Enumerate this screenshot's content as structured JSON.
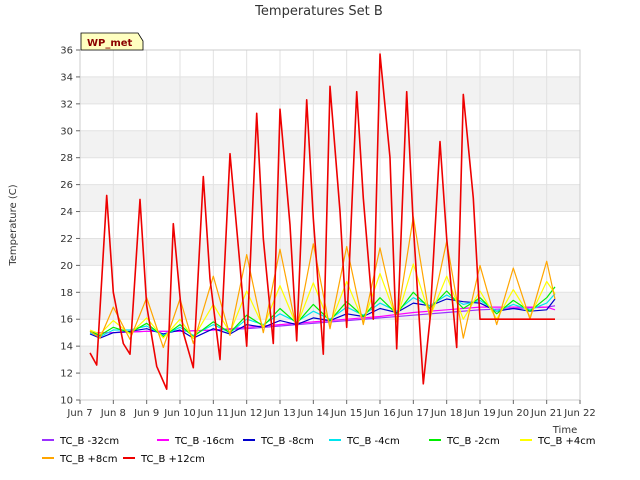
{
  "chart_data": {
    "type": "line",
    "title": "Temperatures Set B",
    "ylabel": "Temperature (C)",
    "xlabel": "Time",
    "badge": "WP_met",
    "xlim": [
      7,
      22
    ],
    "ylim": [
      10,
      36
    ],
    "x_ticks": [
      {
        "v": 7,
        "label": "Jun 7"
      },
      {
        "v": 8,
        "label": "Jun 8"
      },
      {
        "v": 9,
        "label": "Jun 9"
      },
      {
        "v": 10,
        "label": "Jun 10"
      },
      {
        "v": 11,
        "label": "Jun 11"
      },
      {
        "v": 12,
        "label": "Jun 12"
      },
      {
        "v": 13,
        "label": "Jun 13"
      },
      {
        "v": 14,
        "label": "Jun 14"
      },
      {
        "v": 15,
        "label": "Jun 15"
      },
      {
        "v": 16,
        "label": "Jun 16"
      },
      {
        "v": 17,
        "label": "Jun 17"
      },
      {
        "v": 18,
        "label": "Jun 18"
      },
      {
        "v": 19,
        "label": "Jun 19"
      },
      {
        "v": 20,
        "label": "Jun 20"
      },
      {
        "v": 21,
        "label": "Jun 21"
      },
      {
        "v": 22,
        "label": "Jun 22"
      }
    ],
    "y_ticks": [
      10,
      12,
      14,
      16,
      18,
      20,
      22,
      24,
      26,
      28,
      30,
      32,
      34,
      36
    ],
    "grid": true,
    "legend_position": "bottom",
    "series": [
      {
        "name": "TC_B -32cm",
        "color": "#9b30ff",
        "x": [
          7.3,
          8.0,
          9.0,
          10.0,
          11.0,
          12.0,
          13.0,
          14.0,
          15.0,
          16.0,
          17.0,
          18.0,
          19.0,
          20.0,
          21.0,
          21.25
        ],
        "y": [
          15.0,
          15.0,
          15.1,
          15.1,
          15.2,
          15.3,
          15.5,
          15.7,
          15.9,
          16.1,
          16.3,
          16.5,
          16.7,
          16.8,
          16.9,
          17.0
        ]
      },
      {
        "name": "TC_B -16cm",
        "color": "#ff00ff",
        "x": [
          7.3,
          8.0,
          9.0,
          10.0,
          11.0,
          12.0,
          13.0,
          14.0,
          15.0,
          16.0,
          17.0,
          18.0,
          19.0,
          20.0,
          21.0,
          21.25
        ],
        "y": [
          15.0,
          15.0,
          15.1,
          15.1,
          15.2,
          15.4,
          15.6,
          15.8,
          16.0,
          16.2,
          16.5,
          16.7,
          16.9,
          16.9,
          16.9,
          16.7
        ]
      },
      {
        "name": "TC_B -8cm",
        "color": "#0000cc",
        "x": [
          7.3,
          7.6,
          8.0,
          8.5,
          9.0,
          9.5,
          10.0,
          10.4,
          11.0,
          11.5,
          12.0,
          12.5,
          13.0,
          13.5,
          14.0,
          14.5,
          15.0,
          15.5,
          16.0,
          16.5,
          17.0,
          17.5,
          18.0,
          18.5,
          19.0,
          19.5,
          20.0,
          20.5,
          21.0,
          21.25
        ],
        "y": [
          14.9,
          14.6,
          15.0,
          15.1,
          15.3,
          14.9,
          15.2,
          14.6,
          15.3,
          14.9,
          15.6,
          15.4,
          15.9,
          15.6,
          16.1,
          15.9,
          16.4,
          16.2,
          16.8,
          16.5,
          17.2,
          17.0,
          17.5,
          17.3,
          17.2,
          16.6,
          16.8,
          16.6,
          16.7,
          17.5
        ]
      },
      {
        "name": "TC_B -4cm",
        "color": "#00e5ee",
        "x": [
          7.3,
          7.6,
          8.0,
          8.5,
          9.0,
          9.5,
          10.0,
          10.4,
          11.0,
          11.5,
          12.0,
          12.5,
          13.0,
          13.5,
          14.0,
          14.5,
          15.0,
          15.5,
          16.0,
          16.5,
          17.0,
          17.5,
          18.0,
          18.5,
          19.0,
          19.5,
          20.0,
          20.5,
          21.0,
          21.25
        ],
        "y": [
          15.0,
          14.7,
          15.2,
          15.2,
          15.5,
          14.8,
          15.4,
          14.8,
          15.6,
          15.0,
          16.0,
          15.6,
          16.4,
          15.8,
          16.6,
          16.0,
          16.9,
          16.3,
          17.2,
          16.6,
          17.6,
          17.0,
          17.8,
          17.1,
          17.4,
          16.6,
          17.1,
          16.7,
          17.2,
          17.9
        ]
      },
      {
        "name": "TC_B -2cm",
        "color": "#00ee00",
        "x": [
          7.3,
          7.6,
          8.0,
          8.5,
          9.0,
          9.5,
          10.0,
          10.4,
          11.0,
          11.5,
          12.0,
          12.5,
          13.0,
          13.5,
          14.0,
          14.5,
          15.0,
          15.5,
          16.0,
          16.5,
          17.0,
          17.5,
          18.0,
          18.5,
          19.0,
          19.5,
          20.0,
          20.5,
          21.0,
          21.25
        ],
        "y": [
          15.1,
          14.8,
          15.4,
          15.0,
          15.7,
          14.7,
          15.6,
          14.7,
          15.8,
          15.0,
          16.3,
          15.5,
          16.8,
          15.7,
          17.1,
          15.9,
          17.3,
          16.2,
          17.6,
          16.4,
          18.0,
          16.8,
          18.1,
          16.8,
          17.6,
          16.4,
          17.4,
          16.6,
          17.6,
          18.4
        ]
      },
      {
        "name": "TC_B +4cm",
        "color": "#ffff00",
        "x": [
          7.3,
          7.6,
          8.0,
          8.5,
          9.0,
          9.5,
          10.0,
          10.4,
          11.0,
          11.5,
          12.0,
          12.5,
          13.0,
          13.5,
          14.0,
          14.5,
          15.0,
          15.5,
          16.0,
          16.5,
          17.0,
          17.5,
          18.0,
          18.5,
          19.0,
          19.5,
          20.0,
          20.5,
          21.0,
          21.25
        ],
        "y": [
          15.2,
          14.9,
          15.9,
          14.9,
          16.1,
          14.6,
          16.0,
          14.6,
          17.1,
          15.0,
          18.1,
          15.4,
          18.5,
          15.5,
          18.7,
          15.6,
          18.8,
          15.8,
          19.4,
          16.0,
          20.1,
          16.2,
          19.2,
          16.0,
          18.1,
          16.0,
          18.2,
          16.2,
          18.8,
          17.9
        ]
      },
      {
        "name": "TC_B +8cm",
        "color": "#ffa500",
        "x": [
          7.3,
          7.6,
          8.0,
          8.5,
          9.0,
          9.5,
          10.0,
          10.4,
          11.0,
          11.5,
          12.0,
          12.5,
          13.0,
          13.5,
          14.0,
          14.5,
          15.0,
          15.5,
          16.0,
          16.5,
          17.0,
          17.5,
          18.0,
          18.5,
          19.0,
          19.5,
          20.0,
          20.5,
          21.0,
          21.25
        ],
        "y": [
          15.1,
          14.6,
          16.9,
          14.5,
          17.6,
          13.9,
          17.5,
          14.2,
          19.2,
          14.8,
          20.8,
          15.0,
          21.2,
          15.2,
          21.6,
          15.3,
          21.4,
          15.6,
          21.3,
          15.8,
          23.6,
          16.0,
          21.8,
          14.6,
          20.0,
          15.6,
          19.8,
          16.0,
          20.3,
          17.5
        ]
      },
      {
        "name": "TC_B +12cm",
        "color": "#ee0000",
        "x": [
          7.3,
          7.5,
          7.8,
          8.0,
          8.3,
          8.5,
          8.8,
          9.0,
          9.3,
          9.6,
          9.8,
          10.1,
          10.4,
          10.7,
          10.9,
          11.2,
          11.5,
          11.8,
          12.0,
          12.3,
          12.5,
          12.8,
          13.0,
          13.3,
          13.5,
          13.8,
          14.0,
          14.3,
          14.5,
          14.8,
          15.0,
          15.3,
          15.5,
          15.8,
          16.0,
          16.3,
          16.5,
          16.8,
          17.0,
          17.3,
          17.5,
          17.8,
          18.0,
          18.3,
          18.5,
          18.8,
          19.0,
          19.3,
          19.5,
          19.8,
          20.0,
          20.3,
          20.5,
          20.8,
          21.0,
          21.25
        ],
        "y": [
          13.5,
          12.6,
          25.2,
          18.0,
          14.2,
          13.4,
          24.9,
          17.0,
          12.5,
          10.8,
          23.1,
          15.0,
          12.4,
          26.6,
          19.0,
          13.0,
          28.3,
          20.0,
          14.0,
          31.3,
          22.0,
          14.2,
          31.6,
          23.0,
          14.4,
          32.3,
          23.5,
          13.4,
          33.3,
          24.0,
          15.4,
          32.9,
          25.0,
          16.0,
          35.7,
          28.0,
          13.8,
          32.9,
          23.0,
          11.2,
          16.0,
          29.2,
          22.0,
          13.9,
          32.7,
          25.0,
          16.0,
          16.0,
          16.0,
          16.0,
          16.0,
          16.0,
          16.0,
          16.0,
          16.0,
          16.0
        ]
      }
    ]
  }
}
